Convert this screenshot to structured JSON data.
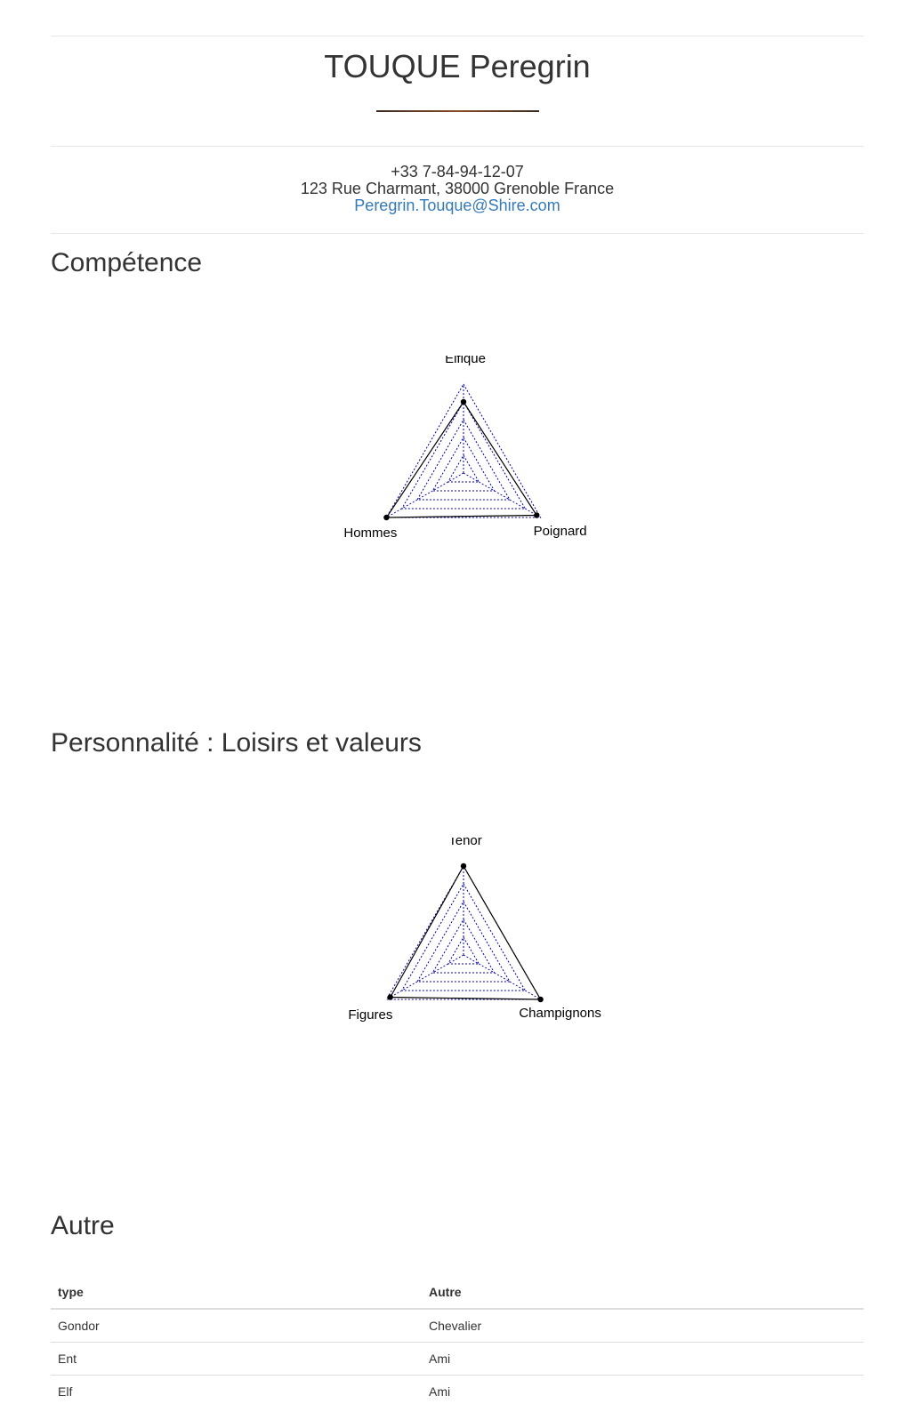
{
  "header": {
    "name": "TOUQUE Peregrin",
    "phone": "+33 7-84-94-12-07",
    "address": "123 Rue Charmant, 38000 Grenoble France",
    "email": "Peregrin.Touque@Shire.com"
  },
  "sections": {
    "competence_title": "Compétence",
    "personnalite_title": "Personnalité : Loisirs et valeurs",
    "autre_title": "Autre"
  },
  "chart_data": [
    {
      "type": "radar",
      "axes": [
        "Elfique",
        "Poignard",
        "Hommes"
      ],
      "values": [
        0.8,
        0.95,
        1.0
      ],
      "range": [
        0,
        1
      ],
      "grid_levels": 5,
      "grid_color": "#0000aa",
      "series_color": "#000000"
    },
    {
      "type": "radar",
      "axes": [
        "Tenor",
        "Champignons",
        "Figures"
      ],
      "values": [
        1.0,
        1.0,
        0.95
      ],
      "range": [
        0,
        1
      ],
      "grid_levels": 5,
      "grid_color": "#0000aa",
      "series_color": "#000000"
    }
  ],
  "table": {
    "headers": [
      "type",
      "Autre"
    ],
    "rows": [
      [
        "Gondor",
        "Chevalier"
      ],
      [
        "Ent",
        "Ami"
      ],
      [
        "Elf",
        "Ami"
      ]
    ]
  }
}
